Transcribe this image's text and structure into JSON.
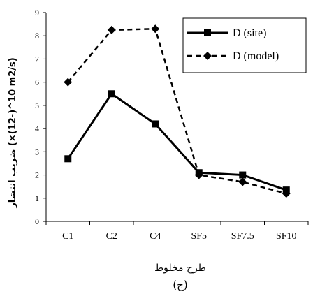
{
  "chart_data": {
    "type": "line",
    "categories": [
      "C1",
      "C2",
      "C4",
      "SF5",
      "SF7.5",
      "SF10"
    ],
    "series": [
      {
        "name": "D (site)",
        "values": [
          2.7,
          5.5,
          4.2,
          2.1,
          2.0,
          1.35
        ],
        "style": "solid",
        "marker": "square",
        "color": "#000000"
      },
      {
        "name": "D (model)",
        "values": [
          6.0,
          8.25,
          8.3,
          2.0,
          1.7,
          1.2
        ],
        "style": "dashed",
        "marker": "diamond",
        "color": "#000000"
      }
    ],
    "xlabel": "طرح مخلوط",
    "ylabel": "ضریب انتشار (×10^(-12) m2/s)",
    "caption": "(ج)",
    "ylim": [
      0,
      9
    ],
    "yticks": [
      0,
      1,
      2,
      3,
      4,
      5,
      6,
      7,
      8,
      9
    ],
    "legend_position": "top-right",
    "grid": false
  }
}
